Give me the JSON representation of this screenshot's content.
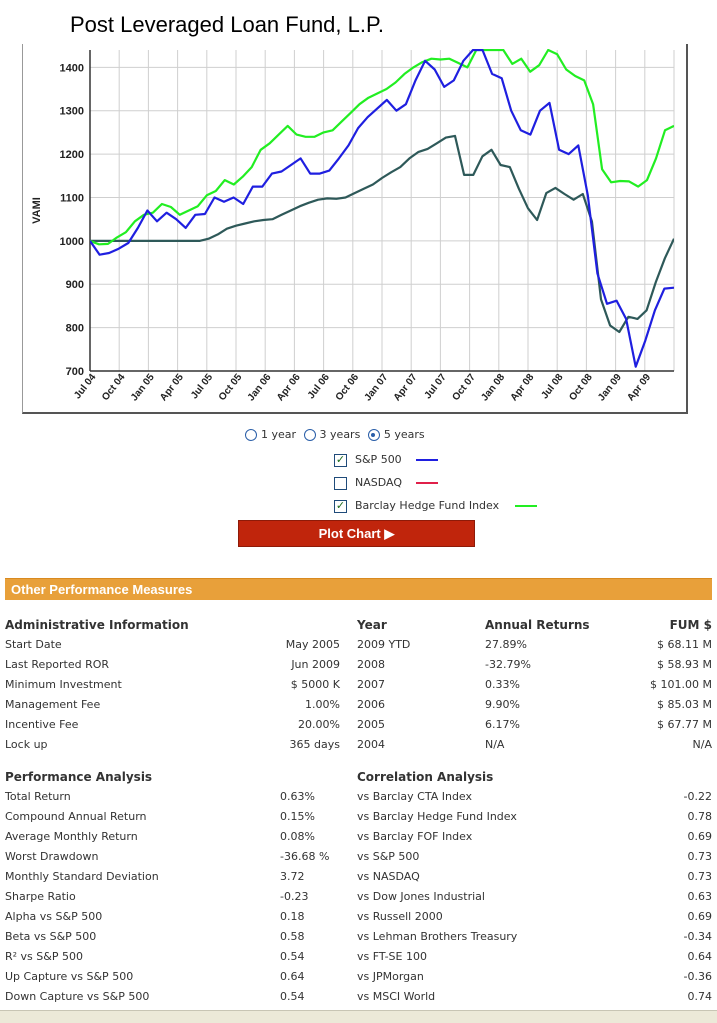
{
  "title": "Post Leveraged Loan Fund, L.P.",
  "chart_data": {
    "type": "line",
    "ylabel": "VAMI",
    "ylim": [
      700,
      1440
    ],
    "yticks": [
      700,
      800,
      900,
      1000,
      1100,
      1200,
      1300,
      1400
    ],
    "xtick_labels": [
      "Jul 04",
      "Oct 04",
      "Jan 05",
      "Apr 05",
      "Jul 05",
      "Oct 05",
      "Jan 06",
      "Apr 06",
      "Jul 06",
      "Oct 06",
      "Jan 07",
      "Apr 07",
      "Jul 07",
      "Oct 07",
      "Jan 08",
      "Apr 08",
      "Jul 08",
      "Oct 08",
      "Jan 09",
      "Apr 09"
    ],
    "series": [
      {
        "name": "Fund",
        "color": "#2e5959",
        "values": [
          1000,
          1000,
          1000,
          1000,
          1000,
          1000,
          1000,
          1000,
          1000,
          1000,
          1000,
          1000,
          1000,
          1005,
          1015,
          1028,
          1035,
          1040,
          1045,
          1048,
          1050,
          1060,
          1070,
          1080,
          1088,
          1095,
          1098,
          1097,
          1100,
          1110,
          1120,
          1130,
          1145,
          1158,
          1170,
          1190,
          1205,
          1212,
          1225,
          1238,
          1242,
          1152,
          1152,
          1195,
          1210,
          1175,
          1170,
          1120,
          1075,
          1048,
          1110,
          1122,
          1108,
          1095,
          1108,
          1045,
          865,
          805,
          790,
          825,
          820,
          840,
          905,
          960,
          1005
        ]
      },
      {
        "name": "S&P 500",
        "color": "#1f1fe0",
        "values": [
          1000,
          968,
          972,
          982,
          995,
          1030,
          1070,
          1045,
          1065,
          1050,
          1030,
          1060,
          1062,
          1100,
          1090,
          1100,
          1085,
          1125,
          1125,
          1155,
          1160,
          1175,
          1190,
          1155,
          1155,
          1162,
          1190,
          1220,
          1260,
          1285,
          1305,
          1325,
          1300,
          1315,
          1370,
          1415,
          1395,
          1355,
          1370,
          1415,
          1440,
          1440,
          1385,
          1375,
          1300,
          1255,
          1245,
          1300,
          1318,
          1210,
          1200,
          1220,
          1105,
          925,
          855,
          862,
          820,
          710,
          770,
          840,
          890,
          892
        ]
      },
      {
        "name": "Barclay Hedge Fund Index",
        "color": "#22ee22",
        "values": [
          1000,
          992,
          993,
          1008,
          1020,
          1045,
          1060,
          1065,
          1085,
          1078,
          1060,
          1070,
          1080,
          1105,
          1115,
          1140,
          1130,
          1148,
          1170,
          1210,
          1225,
          1245,
          1265,
          1245,
          1240,
          1240,
          1250,
          1255,
          1275,
          1295,
          1315,
          1330,
          1340,
          1350,
          1365,
          1385,
          1400,
          1412,
          1420,
          1418,
          1420,
          1410,
          1400,
          1440,
          1440,
          1440,
          1440,
          1408,
          1420,
          1390,
          1405,
          1440,
          1430,
          1395,
          1380,
          1370,
          1315,
          1165,
          1135,
          1138,
          1137,
          1125,
          1140,
          1190,
          1255,
          1265
        ]
      }
    ]
  },
  "controls": {
    "period_1y": "1 year",
    "period_3y": "3 years",
    "period_5y": "5 years",
    "series": [
      {
        "label": "S&P 500",
        "checked": true,
        "color": "#1f1fe0"
      },
      {
        "label": "NASDAQ",
        "checked": false,
        "color": "#e0204a"
      },
      {
        "label": "Barclay Hedge Fund Index",
        "checked": true,
        "color": "#22ee22"
      }
    ],
    "plot_button": "Plot Chart ▶"
  },
  "perf": {
    "section_title": "Other Performance Measures",
    "admin": {
      "header": "Administrative Information",
      "rows": [
        {
          "label": "Start Date",
          "value": "May 2005"
        },
        {
          "label": "Last Reported ROR",
          "value": "Jun 2009"
        },
        {
          "label": "Minimum Investment",
          "value": "$ 5000 K"
        },
        {
          "label": "Management Fee",
          "value": "1.00%"
        },
        {
          "label": "Incentive Fee",
          "value": "20.00%"
        },
        {
          "label": "Lock up",
          "value": "365 days"
        }
      ]
    },
    "annual": {
      "header_year": "Year",
      "header_returns": "Annual Returns",
      "header_fum": "FUM $",
      "rows": [
        {
          "year": "2009 YTD",
          "ret": "27.89%",
          "fum": "$ 68.11 M"
        },
        {
          "year": "2008",
          "ret": "-32.79%",
          "fum": "$ 58.93 M"
        },
        {
          "year": "2007",
          "ret": "0.33%",
          "fum": "$ 101.00 M"
        },
        {
          "year": "2006",
          "ret": "9.90%",
          "fum": "$ 85.03 M"
        },
        {
          "year": "2005",
          "ret": "6.17%",
          "fum": "$ 67.77 M"
        },
        {
          "year": "2004",
          "ret": "N/A",
          "fum": "N/A"
        }
      ]
    },
    "performance": {
      "header": "Performance Analysis",
      "rows": [
        {
          "label": "Total Return",
          "value": "0.63%"
        },
        {
          "label": "Compound Annual Return",
          "value": "0.15%"
        },
        {
          "label": "Average Monthly Return",
          "value": "0.08%"
        },
        {
          "label": "Worst Drawdown",
          "value": "-36.68 %"
        },
        {
          "label": "Monthly Standard Deviation",
          "value": "3.72"
        },
        {
          "label": "Sharpe Ratio",
          "value": "-0.23"
        },
        {
          "label": "Alpha vs S&P 500",
          "value": "0.18"
        },
        {
          "label": "Beta vs S&P 500",
          "value": "0.58"
        },
        {
          "label": "R² vs S&P 500",
          "value": "0.54"
        },
        {
          "label": "Up Capture vs S&P 500",
          "value": "0.64"
        },
        {
          "label": "Down Capture vs S&P 500",
          "value": "0.54"
        }
      ]
    },
    "correlation": {
      "header": "Correlation Analysis",
      "rows": [
        {
          "label": "vs Barclay CTA Index",
          "value": "-0.22"
        },
        {
          "label": "vs Barclay Hedge Fund Index",
          "value": "0.78"
        },
        {
          "label": "vs Barclay FOF Index",
          "value": "0.69"
        },
        {
          "label": "vs S&P 500",
          "value": "0.73"
        },
        {
          "label": "vs NASDAQ",
          "value": "0.73"
        },
        {
          "label": "vs Dow Jones Industrial",
          "value": "0.63"
        },
        {
          "label": "vs Russell 2000",
          "value": "0.69"
        },
        {
          "label": "vs Lehman Brothers Treasury",
          "value": "-0.34"
        },
        {
          "label": "vs FT-SE 100",
          "value": "0.64"
        },
        {
          "label": "vs JPMorgan",
          "value": "-0.36"
        },
        {
          "label": "vs MSCI World",
          "value": "0.74"
        }
      ]
    }
  }
}
